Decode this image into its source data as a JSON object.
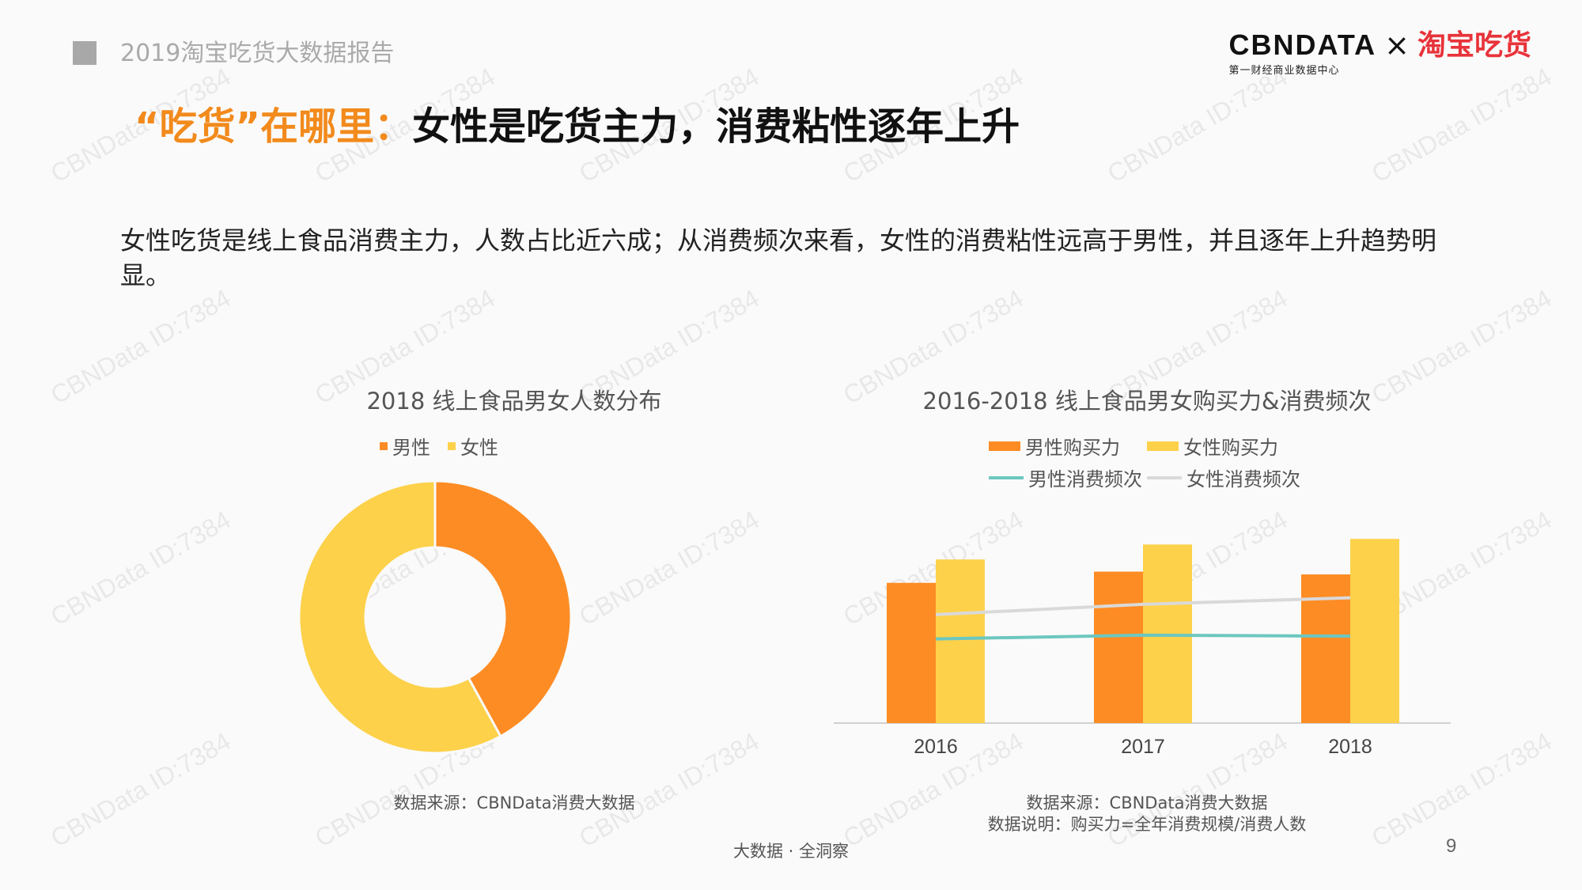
{
  "header": {
    "report_name": "2019淘宝吃货大数据报告",
    "logo_main": "CBNDATA",
    "logo_sub": "第一财经商业数据中心",
    "logo_x": "×",
    "logo_partner": "淘宝吃货"
  },
  "title": {
    "highlight": "“吃货”在哪里：",
    "rest": "女性是吃货主力，消费粘性逐年上升"
  },
  "description": "女性吃货是线上食品消费主力，人数占比近六成；从消费频次来看，女性的消费粘性远高于男性，并且逐年上升趋势明显。",
  "watermark": "CBNData ID:7384",
  "colors": {
    "male": "#fd8c24",
    "female": "#fdd14a",
    "male_freq": "#6cc7c0",
    "female_freq": "#d9d9d9",
    "title_accent": "#f28a1c"
  },
  "chart_data": [
    {
      "type": "pie",
      "title": "2018 线上食品男女人数分布",
      "legend_position": "top",
      "slices": [
        {
          "name": "男性",
          "value": 42
        },
        {
          "name": "女性",
          "value": 58
        }
      ],
      "source": "数据来源：CBNData消费大数据"
    },
    {
      "type": "bar",
      "title": "2016-2018 线上食品男女购买力&消费频次",
      "legend_position": "top",
      "categories": [
        "2016",
        "2017",
        "2018"
      ],
      "series": [
        {
          "name": "男性购买力",
          "type": "bar",
          "values": [
            150,
            162,
            159
          ]
        },
        {
          "name": "女性购买力",
          "type": "bar",
          "values": [
            175,
            191,
            197
          ]
        },
        {
          "name": "男性消费频次",
          "type": "line",
          "values": [
            90,
            94,
            93
          ]
        },
        {
          "name": "女性消费频次",
          "type": "line",
          "values": [
            116,
            127,
            134
          ]
        }
      ],
      "ylim": [
        0,
        220
      ],
      "grid": false,
      "source": "数据来源：CBNData消费大数据",
      "note": "数据说明：购买力=全年消费规模/消费人数"
    }
  ],
  "footer": {
    "text": "大数据 · 全洞察",
    "page": "9"
  }
}
